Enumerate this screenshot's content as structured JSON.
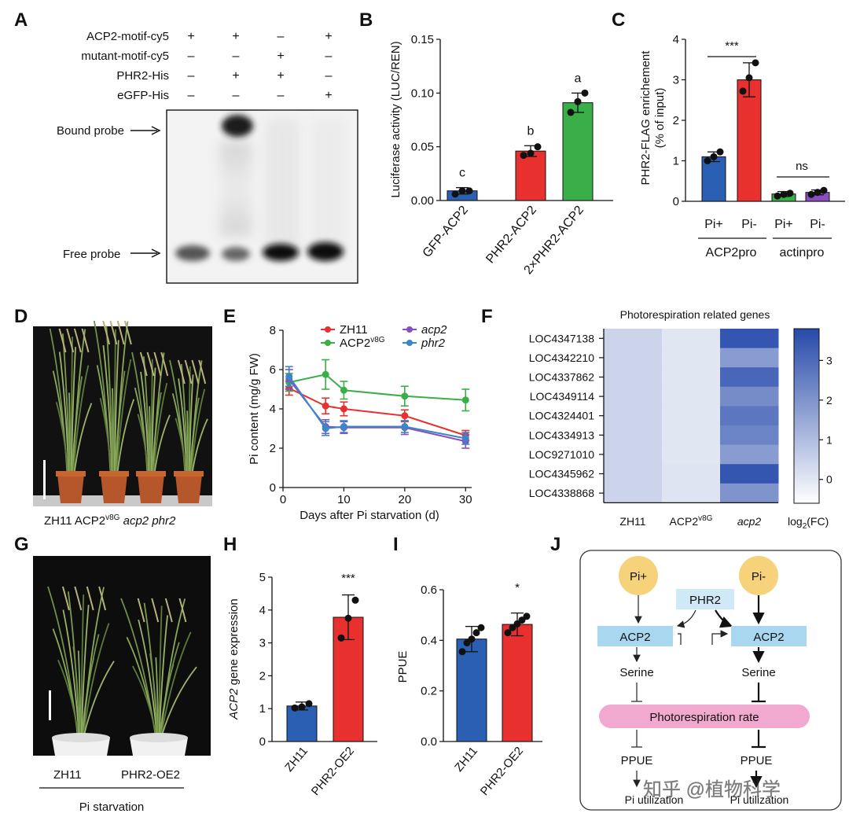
{
  "panels": {
    "A": {
      "letter": "A",
      "rows": [
        {
          "label": "ACP2-motif-cy5",
          "marks": [
            "+",
            "+",
            "–",
            "+"
          ]
        },
        {
          "label": "mutant-motif-cy5",
          "marks": [
            "–",
            "–",
            "+",
            "–"
          ]
        },
        {
          "label": "PHR2-His",
          "marks": [
            "–",
            "+",
            "+",
            "–"
          ]
        },
        {
          "label": "eGFP-His",
          "marks": [
            "–",
            "–",
            "–",
            "+"
          ]
        }
      ],
      "bound_label": "Bound probe",
      "free_label": "Free probe"
    },
    "B": {
      "letter": "B",
      "chart_data": {
        "type": "bar",
        "categories": [
          "GFP-ACP2",
          "PHR2-ACP2",
          "2×PHR2-ACP2"
        ],
        "values": [
          0.009,
          0.046,
          0.091
        ],
        "errors": [
          0.003,
          0.005,
          0.009
        ],
        "points": [
          [
            0.006,
            0.009,
            0.009
          ],
          [
            0.042,
            0.044,
            0.05
          ],
          [
            0.082,
            0.092,
            0.1
          ]
        ],
        "letters": [
          "c",
          "b",
          "a"
        ],
        "colors": [
          "#2b5fb3",
          "#e8312f",
          "#3aaf48"
        ],
        "ylabel": "Luciferase activity (LUC/REN)",
        "yticks": [
          "0.00",
          "0.05",
          "0.10",
          "0.15"
        ],
        "ylim": [
          0,
          0.15
        ]
      }
    },
    "C": {
      "letter": "C",
      "chart_data": {
        "type": "bar",
        "categories": [
          "Pi+",
          "Pi-",
          "Pi+",
          "Pi-"
        ],
        "groups": [
          "ACP2pro",
          "actinpro"
        ],
        "values": [
          1.1,
          3.0,
          0.18,
          0.22
        ],
        "errors": [
          0.12,
          0.42,
          0.06,
          0.06
        ],
        "points": [
          [
            1.0,
            1.1,
            1.22
          ],
          [
            2.72,
            3.05,
            3.42
          ],
          [
            0.13,
            0.17,
            0.2
          ],
          [
            0.17,
            0.22,
            0.27
          ]
        ],
        "colors": [
          "#2b5fb3",
          "#e8312f",
          "#3aaf48",
          "#8a4fbf"
        ],
        "ylabel": "PHR2-FLAG enrichement (% of input)",
        "ylabel_line1": "PHR2-FLAG enrichement",
        "ylabel_line2": "(% of input)",
        "yticks": [
          "0",
          "1",
          "2",
          "3",
          "4"
        ],
        "ylim": [
          0,
          4
        ],
        "sig_left": "***",
        "sig_right": "ns"
      }
    },
    "D": {
      "letter": "D",
      "caption_parts": [
        "ZH11",
        "ACP2",
        "v8G",
        "acp2",
        "phr2"
      ]
    },
    "E": {
      "letter": "E",
      "chart_data": {
        "type": "line",
        "x": [
          1,
          7,
          10,
          20,
          30
        ],
        "series": [
          {
            "name": "ZH11",
            "color": "#e8312f",
            "values": [
              5.05,
              4.15,
              4.0,
              3.65,
              2.65
            ],
            "errors": [
              0.35,
              0.4,
              0.35,
              0.3,
              0.25
            ]
          },
          {
            "name": "ACP2",
            "name_sup": "v8G",
            "color": "#3aaf48",
            "values": [
              5.35,
              5.75,
              4.95,
              4.65,
              4.45
            ],
            "errors": [
              0.45,
              0.75,
              0.45,
              0.5,
              0.55
            ]
          },
          {
            "name": "acp2",
            "color": "#8a4fbf",
            "values": [
              5.5,
              3.1,
              3.05,
              3.05,
              2.35
            ],
            "errors": [
              0.5,
              0.35,
              0.3,
              0.35,
              0.35
            ]
          },
          {
            "name": "phr2",
            "color": "#3a86c8",
            "values": [
              5.65,
              3.0,
              3.1,
              3.1,
              2.5
            ],
            "errors": [
              0.5,
              0.35,
              0.3,
              0.3,
              0.3
            ]
          }
        ],
        "xlabel": "Days after Pi starvation (d)",
        "ylabel": "Pi content (mg/g FW)",
        "xticks": [
          "0",
          "10",
          "20",
          "30"
        ],
        "yticks": [
          "0",
          "2",
          "4",
          "6",
          "8"
        ],
        "xlim": [
          0,
          31
        ],
        "ylim": [
          0,
          8
        ]
      }
    },
    "F": {
      "letter": "F",
      "chart_data": {
        "type": "heatmap",
        "title": "Photorespiration related genes",
        "rows": [
          "LOC4347138",
          "LOC4342210",
          "LOC4337862",
          "LOC4349114",
          "LOC4324401",
          "LOC4334913",
          "LOC9271010",
          "LOC4345962",
          "LOC4338868"
        ],
        "columns": [
          "ZH11",
          "ACP2v8G",
          "acp2"
        ],
        "column_labels": {
          "zh11": "ZH11",
          "acp2v8g": "ACP2",
          "acp2v8g_sup": "v8G",
          "acp2": "acp2"
        },
        "values": [
          [
            0.45,
            0.0,
            3.5
          ],
          [
            0.45,
            0.0,
            1.8
          ],
          [
            0.45,
            0.0,
            3.1
          ],
          [
            0.45,
            0.0,
            2.2
          ],
          [
            0.45,
            0.0,
            2.7
          ],
          [
            0.45,
            0.0,
            2.4
          ],
          [
            0.45,
            0.0,
            1.8
          ],
          [
            0.45,
            0.05,
            3.5
          ],
          [
            0.45,
            0.05,
            2.0
          ]
        ],
        "colorbar_ticks": [
          "0",
          "1",
          "2",
          "3"
        ],
        "colorbar_range": [
          -0.6,
          3.8
        ],
        "colorbar_label": "log",
        "colorbar_label_sub": "2",
        "colorbar_label_tail": "(FC)"
      }
    },
    "G": {
      "letter": "G",
      "labels": [
        "ZH11",
        "PHR2-OE2"
      ],
      "condition": "Pi starvation"
    },
    "H": {
      "letter": "H",
      "chart_data": {
        "type": "bar",
        "categories": [
          "ZH11",
          "PHR2-OE2"
        ],
        "values": [
          1.08,
          3.78
        ],
        "errors": [
          0.12,
          0.68
        ],
        "points": [
          [
            1.02,
            1.05,
            1.15
          ],
          [
            3.15,
            3.75,
            4.3
          ]
        ],
        "colors": [
          "#2b5fb3",
          "#e8312f"
        ],
        "ylabel_italic": "ACP2",
        "ylabel_tail": " gene expression",
        "yticks": [
          "0",
          "1",
          "2",
          "3",
          "4",
          "5"
        ],
        "ylim": [
          0,
          5
        ],
        "sig": "***"
      }
    },
    "I": {
      "letter": "I",
      "chart_data": {
        "type": "bar",
        "categories": [
          "ZH11",
          "PHR2-OE2"
        ],
        "values": [
          0.405,
          0.463
        ],
        "errors": [
          0.05,
          0.045
        ],
        "points": [
          [
            0.355,
            0.39,
            0.405,
            0.43,
            0.45
          ],
          [
            0.43,
            0.45,
            0.465,
            0.48,
            0.495
          ]
        ],
        "colors": [
          "#2b5fb3",
          "#e8312f"
        ],
        "ylabel": "PPUE",
        "yticks": [
          "0.0",
          "0.2",
          "0.4",
          "0.6"
        ],
        "ylim": [
          0,
          0.6
        ],
        "sig": "*"
      }
    },
    "J": {
      "letter": "J",
      "pi_plus": "Pi+",
      "pi_minus": "Pi-",
      "phr2": "PHR2",
      "acp2_left": "ACP2",
      "acp2_right": "ACP2",
      "serine_left": "Serine",
      "serine_right": "Serine",
      "photorespiration": "Photorespiration rate",
      "ppue_left": "PPUE",
      "ppue_right": "PPUE",
      "pi_util_left": "Pi utilization",
      "pi_util_right": "Pi utilization",
      "colors": {
        "circle": "#f6d27a",
        "gene_box": "#a9d7ef",
        "phr2_box": "#cfe9f7",
        "bar": "#f2a9cf"
      }
    }
  },
  "watermark": "知乎 @植物科学"
}
